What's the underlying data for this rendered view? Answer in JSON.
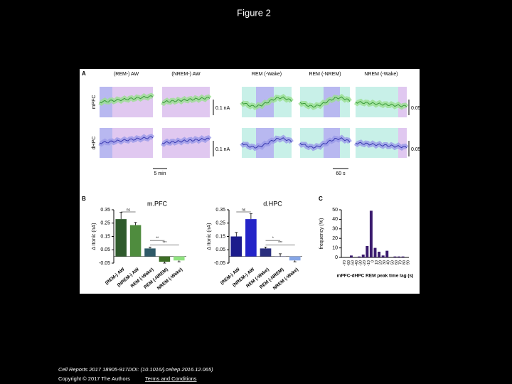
{
  "title": "Figure 2",
  "panel_a": {
    "label": "A",
    "columns": [
      "(REM-) AW",
      "(NREM-) AW",
      "REM (-Wake)",
      "REM (-NREM)",
      "NREM (-Wake)"
    ],
    "rows": [
      "mPFC",
      "dHPC"
    ],
    "scale_bars": [
      "0.1 nA",
      "0.1 nA",
      "0.05 nA",
      "0.05 nA"
    ],
    "time_bars": [
      "5 min",
      "60 s"
    ]
  },
  "panel_b": {
    "label": "B"
  },
  "panel_c": {
    "label": "C"
  },
  "chart_data": [
    {
      "type": "bar",
      "title": "m.PFC",
      "y_label": "Δ Itonic (nA)",
      "categories": [
        "(REM-) AW",
        "(NREM-) AW",
        "REM (-Wake)",
        "REM (-NREM)",
        "NREM (-Wake)"
      ],
      "values": [
        0.28,
        0.235,
        0.06,
        -0.04,
        -0.03
      ],
      "errors": [
        0.05,
        0.02,
        0.01,
        0.01,
        0.01
      ],
      "colors": [
        "#2f5a2c",
        "#4f8c3e",
        "#2f5a68",
        "#3d6e26",
        "#8fe27f"
      ],
      "ylim": [
        -0.05,
        0.35
      ],
      "yticks": [
        -0.05,
        0.05,
        0.15,
        0.25,
        0.35
      ],
      "annotations": [
        "ns",
        "**",
        "***"
      ]
    },
    {
      "type": "bar",
      "title": "d.HPC",
      "y_label": "Δ Itonic (nA)",
      "categories": [
        "(REM-) AW",
        "(NREM-) AW",
        "REM (-Wake)",
        "REM (-NREM)",
        "NREM (-Wake)"
      ],
      "values": [
        0.15,
        0.28,
        0.06,
        0.0,
        -0.03
      ],
      "errors": [
        0.03,
        0.04,
        0.01,
        0.02,
        0.01
      ],
      "colors": [
        "#1b1b8c",
        "#2424c8",
        "#2b2f7e",
        "#6a6a9a",
        "#86a6e6"
      ],
      "ylim": [
        -0.05,
        0.35
      ],
      "yticks": [
        -0.05,
        0.05,
        0.15,
        0.25,
        0.35
      ],
      "annotations": [
        "ns",
        "*",
        "***"
      ]
    },
    {
      "type": "histogram",
      "y_label": "frequency (%)",
      "x_label": "mPFC-dHPC REM peak time lag (s)",
      "x": [
        -70,
        -60,
        -50,
        -40,
        -30,
        -20,
        -10,
        0,
        10,
        20,
        30,
        40,
        50,
        60,
        70,
        80,
        90
      ],
      "values": [
        0,
        0,
        2,
        0,
        1,
        3,
        12,
        49,
        10,
        6,
        2,
        7,
        0,
        1,
        1,
        1,
        0
      ],
      "color": "#3b1b6e",
      "xlim": [
        -75,
        95
      ],
      "ylim": [
        0,
        50
      ],
      "yticks": [
        0,
        10,
        20,
        30,
        40,
        50
      ]
    }
  ],
  "footer": {
    "citation": "Cell Reports 2017 18905-917DOI: (10.1016/j.celrep.2016.12.065)",
    "copyright": "Copyright © 2017 The Authors",
    "link": "Terms and Conditions"
  }
}
